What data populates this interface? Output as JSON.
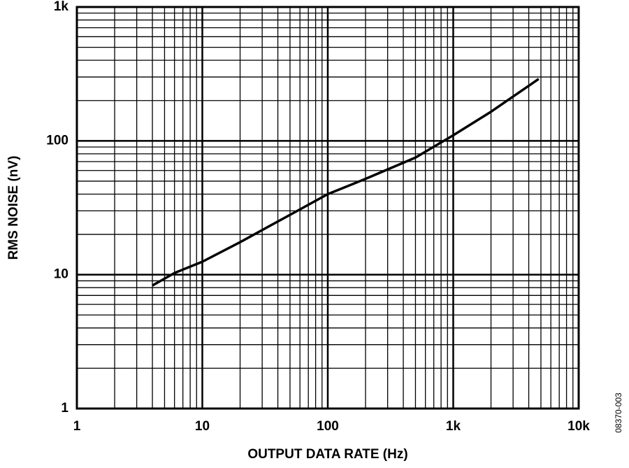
{
  "chart_data": {
    "type": "line",
    "x_label": "OUTPUT DATA RATE (Hz)",
    "y_label": "RMS NOISE (nV)",
    "note": "08370-003",
    "x": [
      4,
      6,
      10,
      20,
      50,
      100,
      200,
      500,
      1000,
      2000,
      4800
    ],
    "series": [
      {
        "color": "#000000",
        "values": [
          8.3,
          10.3,
          12.5,
          17.5,
          28,
          40,
          52,
          75,
          110,
          165,
          290
        ]
      }
    ],
    "xlim": [
      1,
      10000
    ],
    "ylim": [
      1,
      1000
    ],
    "xticks": [
      1,
      10,
      100,
      {
        "value": 1000,
        "label": "1k"
      },
      {
        "value": 10000,
        "label": "10k"
      }
    ],
    "yticks": [
      1,
      10,
      100,
      {
        "value": 1000,
        "label": "1k"
      }
    ],
    "x_log": true,
    "y_log": true,
    "grid": true,
    "minor_grid": true
  }
}
